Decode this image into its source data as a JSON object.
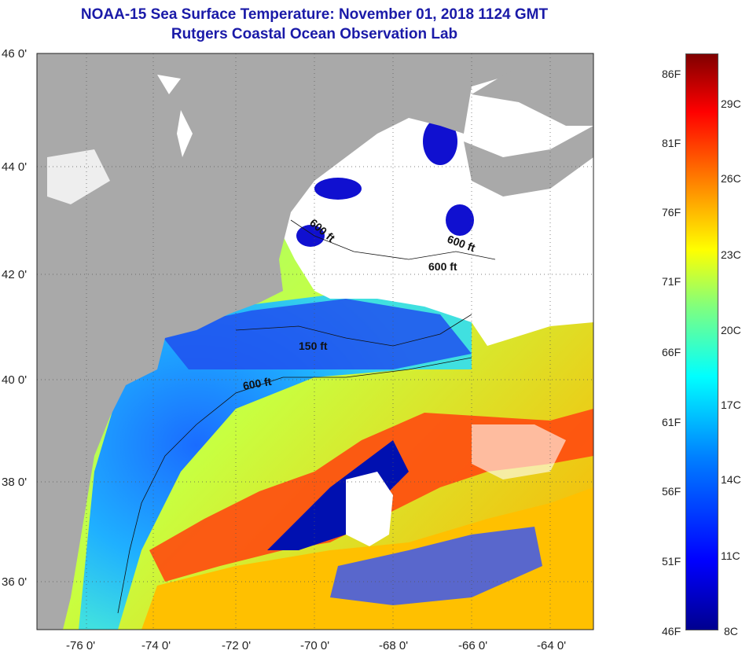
{
  "title": {
    "line1": "NOAA-15 Sea Surface Temperature:  November 01, 2018 1124 GMT",
    "line2": "Rutgers Coastal Ocean Observation Lab"
  },
  "map": {
    "lat_labels": [
      "46 0'",
      "44 0'",
      "42 0'",
      "40 0'",
      "38 0'",
      "36 0'"
    ],
    "lon_labels": [
      "-76 0'",
      "-74 0'",
      "-72 0'",
      "-70 0'",
      "-68 0'",
      "-66 0'",
      "-64 0'"
    ],
    "isobath_labels": [
      "600 ft",
      "600 ft",
      "600 ft",
      "150 ft",
      "600 ft"
    ],
    "land_color": "#a9a9a9",
    "cloud_color": "#ffffff"
  },
  "colorbar": {
    "fahrenheit": [
      "86F",
      "81F",
      "76F",
      "71F",
      "66F",
      "61F",
      "56F",
      "51F",
      "46F"
    ],
    "celsius": [
      "29C",
      "26C",
      "23C",
      "20C",
      "17C",
      "14C",
      "11C",
      "8C"
    ],
    "colors": [
      "#00008f",
      "#0000ff",
      "#0080ff",
      "#00ffff",
      "#7fff7f",
      "#ffff00",
      "#ff8000",
      "#ff0000",
      "#800000"
    ]
  }
}
